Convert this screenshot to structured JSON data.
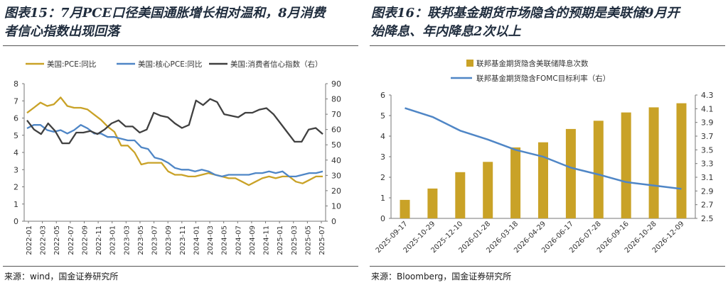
{
  "left": {
    "title_line1": "图表15：7月PCE口径美国通胀增长相对温和，8月消费",
    "title_line2": "者信心指数出现回落",
    "source": "来源：wind，国金证券研究所"
  },
  "right": {
    "title_line1": "图表16：联邦基金期货市场隐含的预期是美联储9月开",
    "title_line2": "始降息、年内降息2次以上",
    "source": "来源：Bloomberg，国金证券研究所"
  },
  "chart_data": [
    {
      "type": "line",
      "title": "",
      "x_ticks": [
        "2022-01",
        "2022-03",
        "2022-05",
        "2022-07",
        "2022-09",
        "2022-11",
        "2023-01",
        "2023-03",
        "2023-05",
        "2023-07",
        "2023-09",
        "2023-11",
        "2024-01",
        "2024-03",
        "2024-05",
        "2024-07",
        "2024-09",
        "2024-11",
        "2025-01",
        "2025-03",
        "2025-05",
        "2025-07"
      ],
      "y_left_lim": [
        0,
        8
      ],
      "y_left_ticks": [
        "0",
        "1",
        "2",
        "3",
        "4",
        "5",
        "6",
        "7",
        "8"
      ],
      "y_right_lim": [
        0,
        90
      ],
      "y_right_ticks": [
        "0",
        "10",
        "20",
        "30",
        "40",
        "50",
        "60",
        "70",
        "80",
        "90"
      ],
      "legend_position": "top",
      "series": [
        {
          "name": "美国:PCE:同比",
          "axis": "left",
          "color": "#c9a227",
          "values": [
            6.3,
            6.6,
            6.9,
            6.7,
            6.8,
            7.2,
            6.7,
            6.6,
            6.6,
            6.5,
            6.2,
            5.9,
            5.5,
            5.2,
            4.4,
            4.4,
            4.0,
            3.3,
            3.4,
            3.4,
            3.4,
            2.9,
            2.7,
            2.7,
            2.6,
            2.6,
            2.7,
            2.8,
            2.7,
            2.6,
            2.5,
            2.5,
            2.3,
            2.1,
            2.3,
            2.5,
            2.6,
            2.5,
            2.6,
            2.6,
            2.3,
            2.2,
            2.4,
            2.6,
            2.6
          ]
        },
        {
          "name": "美国:核心PCE:同比",
          "axis": "left",
          "color": "#4f86c6",
          "values": [
            5.4,
            5.6,
            5.6,
            5.3,
            5.2,
            5.3,
            5.1,
            5.3,
            5.6,
            5.4,
            5.1,
            5.1,
            4.9,
            4.9,
            4.8,
            4.7,
            4.7,
            4.3,
            4.2,
            3.7,
            3.6,
            3.4,
            3.1,
            3.0,
            3.0,
            2.9,
            3.0,
            2.9,
            2.7,
            2.6,
            2.7,
            2.7,
            2.7,
            2.7,
            2.8,
            2.8,
            2.9,
            2.8,
            2.9,
            2.6,
            2.6,
            2.7,
            2.8,
            2.8,
            2.9
          ]
        },
        {
          "name": "美国:消费者信心指数（右）",
          "axis": "right",
          "color": "#404040",
          "values": [
            66,
            60,
            57,
            64,
            59,
            51,
            51,
            58,
            58,
            59,
            57,
            60,
            64,
            66,
            62,
            62,
            58,
            60,
            71,
            69,
            68,
            64,
            61,
            63,
            79,
            76,
            80,
            78,
            70,
            69,
            68,
            71,
            71,
            73,
            74,
            70,
            64,
            58,
            52,
            52,
            60,
            61,
            57
          ]
        }
      ]
    },
    {
      "type": "bar",
      "title": "",
      "categories": [
        "2025-09-17",
        "2025-10-29",
        "2025-12-10",
        "2026-01-28",
        "2026-03-18",
        "2026-04-29",
        "2026-06-17",
        "2026-07-28",
        "2026-09-16",
        "2026-10-28",
        "2026-12-09"
      ],
      "y_left_lim": [
        0,
        6
      ],
      "y_left_ticks": [
        "0",
        "1",
        "2",
        "3",
        "4",
        "5",
        "6"
      ],
      "y_right_lim": [
        2.5,
        4.3
      ],
      "y_right_ticks": [
        "2.5",
        "2.7",
        "2.9",
        "3.1",
        "3.3",
        "3.5",
        "3.7",
        "3.9",
        "4.1",
        "4.3"
      ],
      "legend_position": "top",
      "series": [
        {
          "name": "联邦基金期货隐含美联储降息次数",
          "kind": "bar",
          "axis": "left",
          "color": "#c9a227",
          "values": [
            0.9,
            1.45,
            2.25,
            2.75,
            3.45,
            3.7,
            4.35,
            4.75,
            5.15,
            5.4,
            5.6
          ]
        },
        {
          "name": "联邦基金期货隐含FOMC目标利率（右）",
          "kind": "line",
          "axis": "right",
          "color": "#4f86c6",
          "values": [
            4.11,
            3.98,
            3.78,
            3.65,
            3.5,
            3.4,
            3.24,
            3.14,
            3.03,
            2.98,
            2.93
          ]
        }
      ]
    }
  ]
}
